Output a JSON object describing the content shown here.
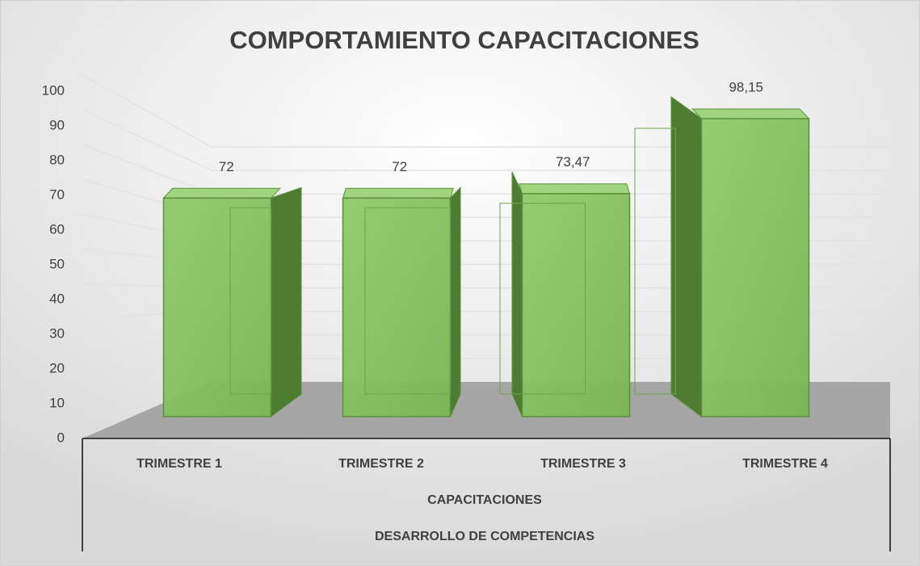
{
  "chart_data": {
    "type": "bar3d",
    "title": "COMPORTAMIENTO CAPACITACIONES",
    "categories": [
      "TRIMESTRE  1",
      "TRIMESTRE  2",
      "TRIMESTRE  3",
      "TRIMESTRE  4"
    ],
    "category_groups": [
      "CAPACITACIONES",
      "DESARROLLO DE COMPETENCIAS"
    ],
    "values": [
      72,
      72,
      73.47,
      98.15
    ],
    "value_labels": [
      "72",
      "72",
      "73,47",
      "98,15"
    ],
    "color": "#7ab655",
    "ylim": [
      0,
      100
    ],
    "yticks": [
      0,
      10,
      20,
      30,
      40,
      50,
      60,
      70,
      80,
      90,
      100
    ],
    "grid": true
  }
}
